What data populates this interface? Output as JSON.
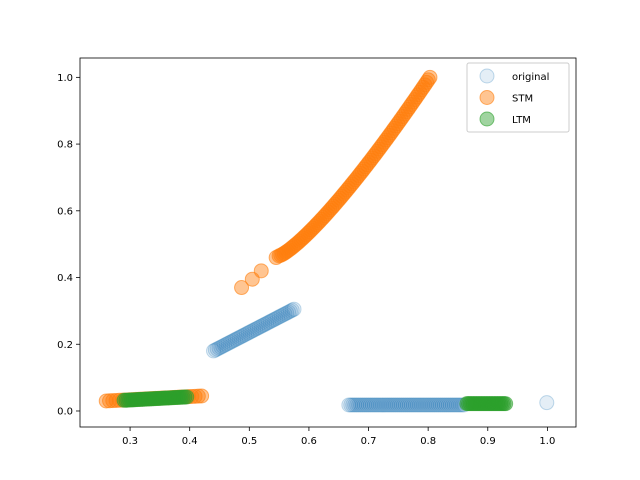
{
  "chart_data": {
    "type": "scatter",
    "xlim": [
      0.216,
      1.048
    ],
    "ylim": [
      -0.048,
      1.058
    ],
    "xticks": [
      0.3,
      0.4,
      0.5,
      0.6,
      0.7,
      0.8,
      0.9,
      1.0
    ],
    "yticks": [
      0.0,
      0.2,
      0.4,
      0.6,
      0.8,
      1.0
    ],
    "xtick_labels": [
      "0.3",
      "0.4",
      "0.5",
      "0.6",
      "0.7",
      "0.8",
      "0.9",
      "1.0"
    ],
    "ytick_labels": [
      "0.0",
      "0.2",
      "0.4",
      "0.6",
      "0.8",
      "1.0"
    ],
    "grid": false,
    "legend_position": "top-right",
    "series": [
      {
        "name": "original",
        "color": "#1f77b4",
        "groups": [
          {
            "kind": "line",
            "x_start": 0.44,
            "x_end": 0.575,
            "y_start": 0.18,
            "y_end": 0.305,
            "count": 45
          },
          {
            "kind": "flat",
            "x_start": 0.667,
            "x_end": 0.86,
            "y": 0.018,
            "count": 60
          },
          {
            "kind": "points",
            "x": [
              0.999
            ],
            "y": [
              0.025
            ]
          }
        ],
        "alpha": 0.12
      },
      {
        "name": "STM",
        "color": "#ff7f0e",
        "groups": [
          {
            "kind": "line",
            "x_start": 0.26,
            "x_end": 0.42,
            "y_start": 0.03,
            "y_end": 0.045,
            "count": 30
          },
          {
            "kind": "points",
            "x": [
              0.487,
              0.505,
              0.52,
              0.545
            ],
            "y": [
              0.37,
              0.395,
              0.42,
              0.46
            ]
          },
          {
            "kind": "curve",
            "x_start": 0.55,
            "x_end": 0.803,
            "y_start": 0.465,
            "y_end": 1.0,
            "count": 90
          }
        ],
        "alpha": 0.45
      },
      {
        "name": "LTM",
        "color": "#2ca02c",
        "groups": [
          {
            "kind": "line",
            "x_start": 0.29,
            "x_end": 0.395,
            "y_start": 0.032,
            "y_end": 0.042,
            "count": 35
          },
          {
            "kind": "flat",
            "x_start": 0.865,
            "x_end": 0.93,
            "y": 0.022,
            "count": 25
          }
        ],
        "alpha": 0.45
      }
    ]
  }
}
